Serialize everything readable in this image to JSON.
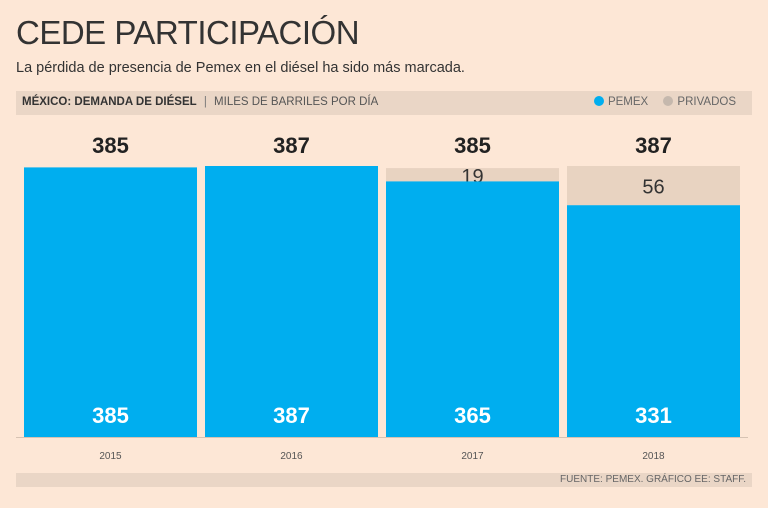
{
  "header": {
    "title": "CEDE PARTICIPACIÓN",
    "subtitle": "La pérdida de presencia de Pemex en el diésel ha sido más marcada."
  },
  "band": {
    "title": "MÉXICO: DEMANDA DE DIÉSEL",
    "separator": "|",
    "unit": "MILES DE BARRILES POR DÍA"
  },
  "footer": {
    "source": "FUENTE: PEMEX. GRÁFICO EE: STAFF."
  },
  "colors": {
    "pemex": "#00aeef",
    "privados": "#e8d3c1",
    "legend_privados_dot": "#c5b8ad"
  },
  "chart_data": {
    "type": "bar",
    "stacked": true,
    "title": "MÉXICO: DEMANDA DE DIÉSEL",
    "ylabel": "MILES DE BARRILES POR DÍA",
    "categories": [
      "2015",
      "2016",
      "2017",
      "2018"
    ],
    "series": [
      {
        "name": "PEMEX",
        "values": [
          385,
          387,
          365,
          331
        ]
      },
      {
        "name": "PRIVADOS",
        "values": [
          0,
          0,
          19,
          56
        ]
      }
    ],
    "totals": [
      385,
      387,
      385,
      387
    ],
    "private_labels": [
      "",
      "",
      "19",
      "56"
    ],
    "legend_position": "top-right",
    "ylim": [
      0,
      387
    ],
    "grid": false
  }
}
